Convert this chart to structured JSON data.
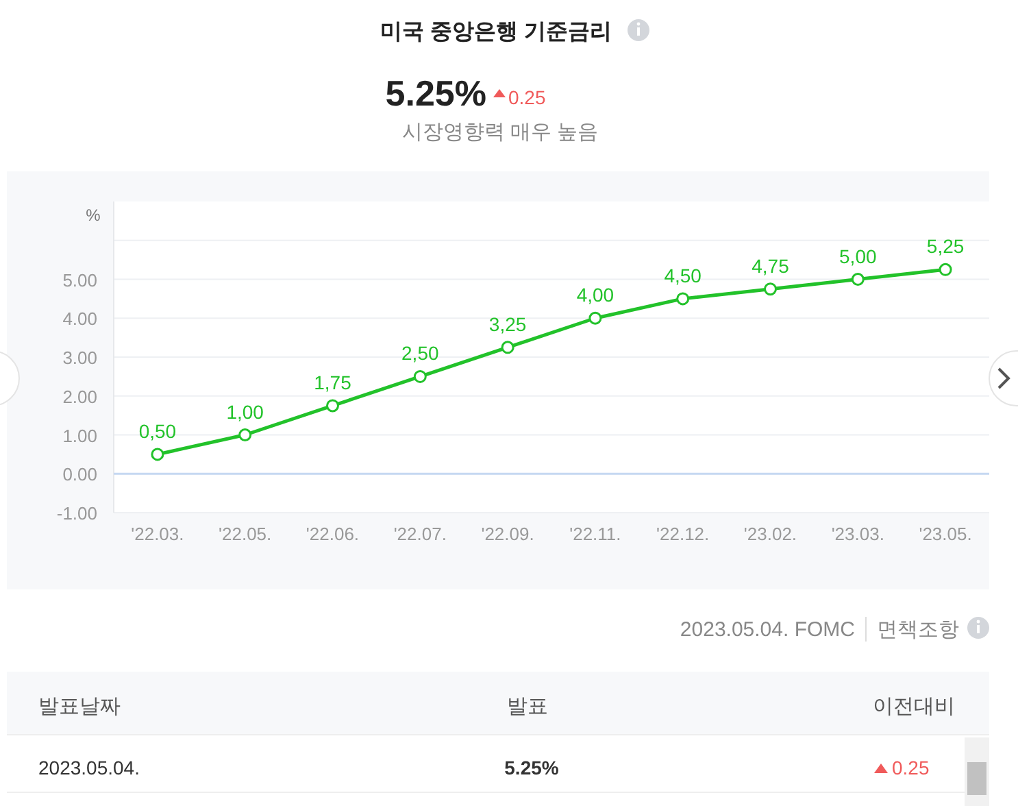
{
  "chart_data": {
    "type": "line",
    "title": "미국 중앙은행 기준금리",
    "ylabel": "%",
    "categories": [
      "'22.03.",
      "'22.05.",
      "'22.06.",
      "'22.07.",
      "'22.09.",
      "'22.11.",
      "'22.12.",
      "'23.02.",
      "'23.03.",
      "'23.05."
    ],
    "series": [
      {
        "color": "#22c22a",
        "values": [
          0.5,
          1.0,
          1.75,
          2.5,
          3.25,
          4.0,
          4.5,
          4.75,
          5.0,
          5.25
        ],
        "value_labels": [
          "0,50",
          "1,00",
          "1,75",
          "2,50",
          "3,25",
          "4,00",
          "4,50",
          "4,75",
          "5,00",
          "5,25"
        ]
      }
    ],
    "ylim": [
      -1,
      7
    ],
    "yticks": [
      {
        "value": -1,
        "label": "-1.00"
      },
      {
        "value": 0,
        "label": "0.00"
      },
      {
        "value": 1,
        "label": "1.00"
      },
      {
        "value": 2,
        "label": "2.00"
      },
      {
        "value": 3,
        "label": "3.00"
      },
      {
        "value": 4,
        "label": "4.00"
      },
      {
        "value": 5,
        "label": "5.00"
      },
      {
        "value": 6,
        "label": null
      }
    ],
    "ref_lines": [
      {
        "axis": "y",
        "value": 0,
        "color": "#c6d8f2"
      }
    ],
    "grid": "y",
    "marker": "circle",
    "line_style": "solid",
    "annotations": [
      "5.25%",
      "0.25",
      "시장영향력 매우 높음",
      "2023.05.04. FOMC",
      "면책조항",
      "발표날짜",
      "발표",
      "이전대비",
      "2023.05.04.",
      "5.25%",
      "0.25"
    ]
  }
}
